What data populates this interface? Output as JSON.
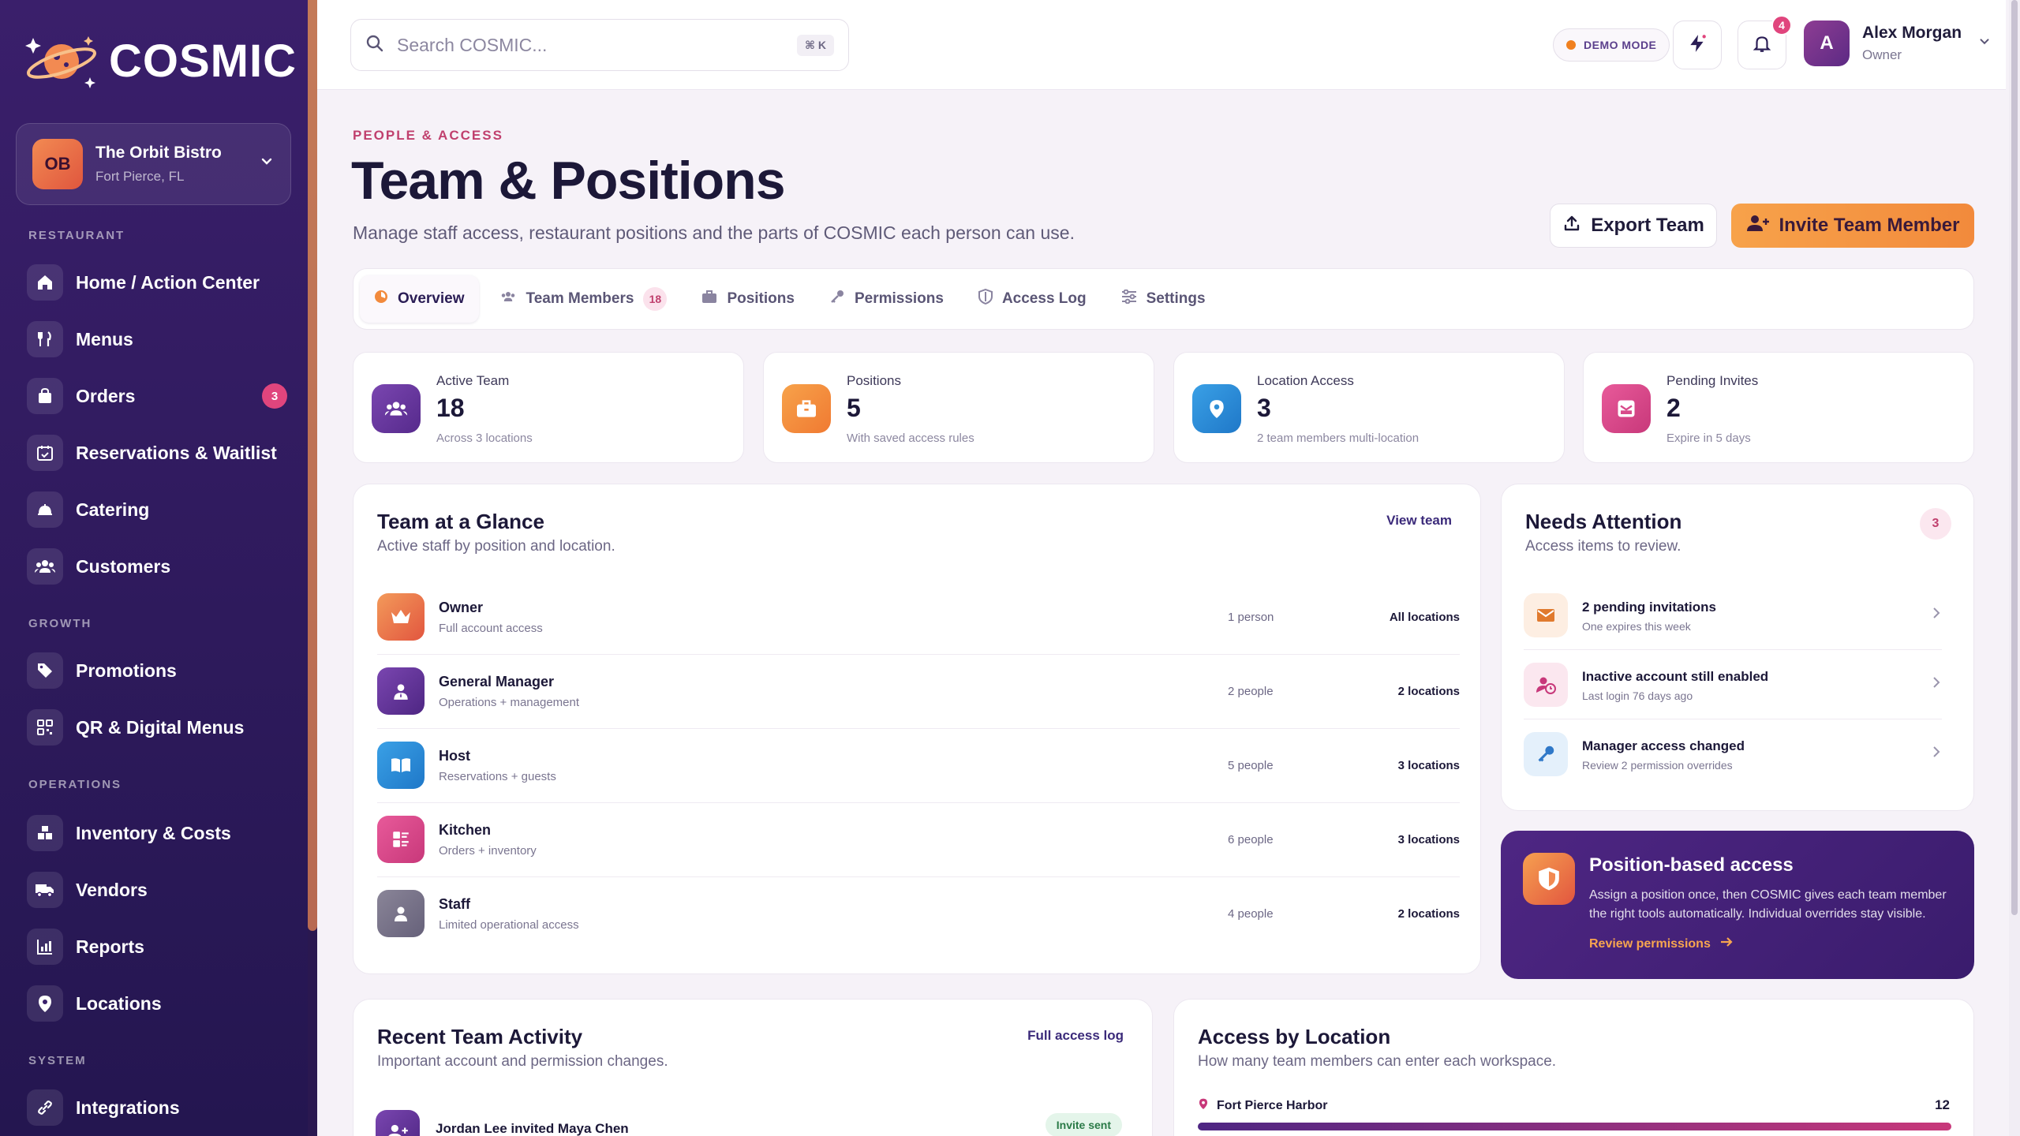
{
  "brand": {
    "name": "COSMIC"
  },
  "workspace": {
    "initials": "OB",
    "name": "The Orbit Bistro",
    "location": "Fort Pierce, FL"
  },
  "sidebar": {
    "sections": {
      "restaurant": "RESTAURANT",
      "growth": "GROWTH",
      "operations": "OPERATIONS",
      "system": "SYSTEM"
    },
    "items": [
      {
        "label": "Home / Action Center",
        "icon": "home-icon"
      },
      {
        "label": "Menus",
        "icon": "utensils-icon"
      },
      {
        "label": "Orders",
        "icon": "bag-icon",
        "badge": "3"
      },
      {
        "label": "Reservations & Waitlist",
        "icon": "calendar-check-icon"
      },
      {
        "label": "Catering",
        "icon": "cloche-icon"
      },
      {
        "label": "Customers",
        "icon": "users-icon"
      },
      {
        "label": "Promotions",
        "icon": "tag-icon"
      },
      {
        "label": "QR & Digital Menus",
        "icon": "qr-icon"
      },
      {
        "label": "Inventory & Costs",
        "icon": "boxes-icon"
      },
      {
        "label": "Vendors",
        "icon": "truck-icon"
      },
      {
        "label": "Reports",
        "icon": "chart-icon"
      },
      {
        "label": "Locations",
        "icon": "pin-icon"
      },
      {
        "label": "Integrations",
        "icon": "link-icon"
      }
    ]
  },
  "topbar": {
    "search_placeholder": "Search COSMIC...",
    "search_shortcut": "⌘ K",
    "demo_label": "DEMO MODE",
    "notifications_count": "4",
    "user": {
      "initial": "A",
      "name": "Alex Morgan",
      "role": "Owner"
    }
  },
  "header": {
    "eyebrow": "PEOPLE & ACCESS",
    "title": "Team & Positions",
    "subtitle": "Manage staff access, restaurant positions and the parts of COSMIC each person can use.",
    "export_label": "Export Team",
    "invite_label": "Invite Team Member"
  },
  "tabs": [
    {
      "label": "Overview",
      "active": true
    },
    {
      "label": "Team Members",
      "count": "18"
    },
    {
      "label": "Positions"
    },
    {
      "label": "Permissions"
    },
    {
      "label": "Access Log"
    },
    {
      "label": "Settings"
    }
  ],
  "stats": [
    {
      "label": "Active Team",
      "value": "18",
      "note": "Across 3 locations",
      "color": "#6a3a9e"
    },
    {
      "label": "Positions",
      "value": "5",
      "note": "With saved access rules",
      "color": "#f28a3c"
    },
    {
      "label": "Location Access",
      "value": "3",
      "note": "2 team members multi-location",
      "color": "#2f8fd6"
    },
    {
      "label": "Pending Invites",
      "value": "2",
      "note": "Expire in 5 days",
      "color": "#d84a8a"
    }
  ],
  "glance": {
    "title": "Team at a Glance",
    "subtitle": "Active staff by position and location.",
    "link": "View team",
    "rows": [
      {
        "name": "Owner",
        "desc": "Full account access",
        "count": "1 person",
        "locations": "All locations"
      },
      {
        "name": "General Manager",
        "desc": "Operations + management",
        "count": "2 people",
        "locations": "2 locations"
      },
      {
        "name": "Host",
        "desc": "Reservations + guests",
        "count": "5 people",
        "locations": "3 locations"
      },
      {
        "name": "Kitchen",
        "desc": "Orders + inventory",
        "count": "6 people",
        "locations": "3 locations"
      },
      {
        "name": "Staff",
        "desc": "Limited operational access",
        "count": "4 people",
        "locations": "2 locations"
      }
    ]
  },
  "attention": {
    "title": "Needs Attention",
    "subtitle": "Access items to review.",
    "count": "3",
    "items": [
      {
        "name": "2 pending invitations",
        "desc": "One expires this week"
      },
      {
        "name": "Inactive account still enabled",
        "desc": "Last login 76 days ago"
      },
      {
        "name": "Manager access changed",
        "desc": "Review 2 permission overrides"
      }
    ]
  },
  "promo": {
    "title": "Position-based access",
    "text": "Assign a position once, then COSMIC gives each team member the right tools automatically. Individual overrides stay visible.",
    "link": "Review permissions"
  },
  "activity": {
    "title": "Recent Team Activity",
    "subtitle": "Important account and permission changes.",
    "link": "Full access log",
    "first_item": "Jordan Lee invited Maya Chen",
    "first_status": "Invite sent"
  },
  "location_access": {
    "title": "Access by Location",
    "subtitle": "How many team members can enter each workspace.",
    "first_location": "Fort Pierce Harbor",
    "first_count": "12"
  }
}
